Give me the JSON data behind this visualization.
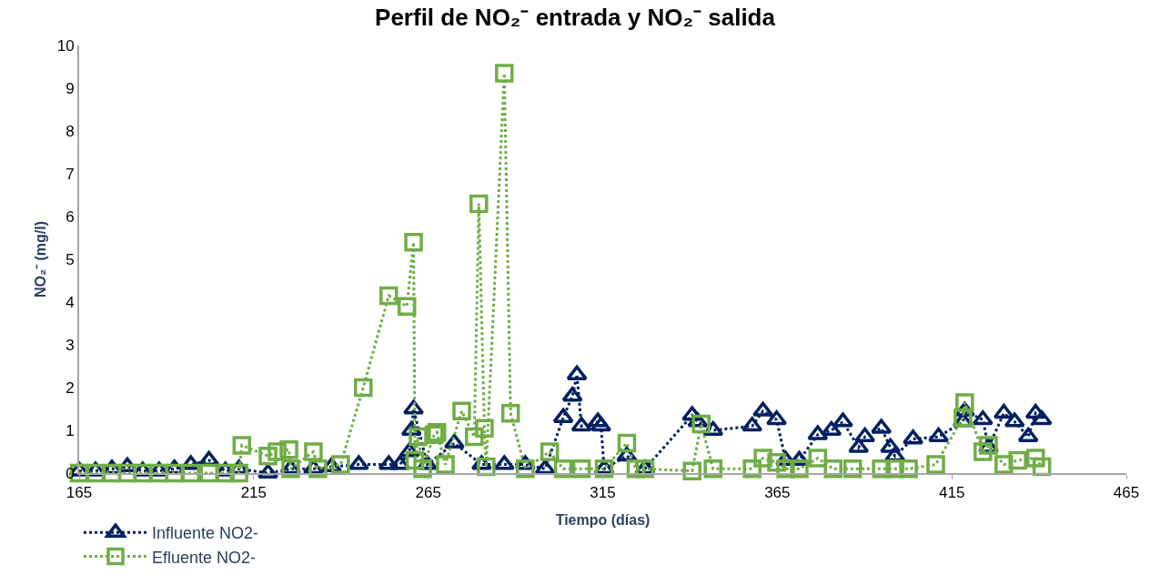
{
  "chart_data": {
    "type": "line",
    "title": "Perfil de NO₂⁻ entrada y NO₂⁻ salida",
    "xlabel": "Tiempo (días)",
    "ylabel": "NO₂⁻ (mg/l)",
    "xlim": [
      165,
      465
    ],
    "xticks": [
      165,
      215,
      265,
      315,
      365,
      415,
      465
    ],
    "ylim": [
      0,
      10
    ],
    "yticks": [
      0,
      1,
      2,
      3,
      4,
      5,
      6,
      7,
      8,
      9,
      10
    ],
    "grid": false,
    "legend": "bottom left",
    "line_style": "dotted",
    "series": [
      {
        "name": "Influente NO2-",
        "color": "#002060",
        "marker": "triangle",
        "x": [
          165,
          169.7,
          174.4,
          178.8,
          183.2,
          187.9,
          192.3,
          197,
          202.2,
          206.9,
          210.8,
          219.1,
          225.6,
          232.1,
          237.3,
          245.1,
          253.7,
          256.9,
          259.6,
          260.2,
          260.8,
          264.7,
          272.5,
          280.3,
          286.8,
          292.8,
          298.5,
          303.7,
          306.3,
          307.6,
          308.9,
          313.6,
          314.5,
          315.4,
          321.9,
          327.1,
          340.6,
          342.2,
          346.6,
          357.8,
          360.9,
          364.8,
          367.4,
          371.3,
          376.6,
          380.5,
          383.8,
          388.3,
          390.1,
          394.8,
          397.4,
          398.7,
          403.9,
          411.2,
          418.2,
          418.7,
          423.9,
          425.5,
          429.9,
          433,
          436.9,
          439,
          440.8
        ],
        "values": [
          0.05,
          0.05,
          0.1,
          0.15,
          0.05,
          0.05,
          0.1,
          0.2,
          0.3,
          0.05,
          0.1,
          0.0,
          0.1,
          0.1,
          0.15,
          0.2,
          0.2,
          0.2,
          0.5,
          1.0,
          1.5,
          0.2,
          0.7,
          0.2,
          0.2,
          0.2,
          0.1,
          1.3,
          1.8,
          2.3,
          1.1,
          1.2,
          1.1,
          0.1,
          0.4,
          0.1,
          1.35,
          1.2,
          1.0,
          1.1,
          1.45,
          1.25,
          0.3,
          0.3,
          0.9,
          1.0,
          1.2,
          0.6,
          0.85,
          1.05,
          0.6,
          0.4,
          0.8,
          0.85,
          1.2,
          1.45,
          1.25,
          0.6,
          1.4,
          1.2,
          0.85,
          1.4,
          1.25
        ]
      },
      {
        "name": "Efluente NO2-",
        "color": "#70ad47",
        "marker": "square",
        "x": [
          165,
          169.7,
          174.4,
          178.8,
          183.2,
          187.9,
          192.3,
          197,
          202.2,
          206.9,
          210.8,
          211.6,
          219.1,
          221.7,
          225.1,
          225.6,
          232.1,
          233.4,
          239.9,
          246.4,
          253.7,
          258.9,
          260.8,
          261.2,
          262.1,
          263.4,
          266.7,
          267.5,
          269.9,
          274.6,
          278.2,
          279.5,
          281.1,
          281.6,
          286.8,
          288.6,
          292.8,
          299.8,
          303.7,
          308.9,
          315.4,
          321.9,
          324.5,
          327.1,
          340.6,
          343.2,
          346.6,
          357.8,
          360.9,
          364.8,
          367.4,
          371.3,
          376.6,
          381,
          386.6,
          394.8,
          398.7,
          402.6,
          410.4,
          418.2,
          418.7,
          423.9,
          425.5,
          429.9,
          433.9,
          439,
          440.8
        ],
        "values": [
          0.0,
          0.0,
          0.0,
          0.0,
          0.0,
          0.0,
          0.0,
          0.0,
          0.0,
          0.0,
          0.0,
          0.65,
          0.4,
          0.5,
          0.55,
          0.1,
          0.5,
          0.1,
          0.2,
          2.0,
          4.15,
          3.9,
          5.4,
          0.3,
          0.85,
          0.1,
          0.9,
          0.95,
          0.2,
          1.45,
          0.85,
          6.3,
          1.05,
          0.15,
          9.35,
          1.4,
          0.1,
          0.5,
          0.1,
          0.1,
          0.1,
          0.7,
          0.1,
          0.1,
          0.05,
          1.15,
          0.1,
          0.1,
          0.35,
          0.25,
          0.1,
          0.1,
          0.35,
          0.1,
          0.1,
          0.1,
          0.1,
          0.1,
          0.2,
          1.3,
          1.65,
          0.5,
          0.65,
          0.2,
          0.3,
          0.35,
          0.15
        ]
      }
    ]
  }
}
